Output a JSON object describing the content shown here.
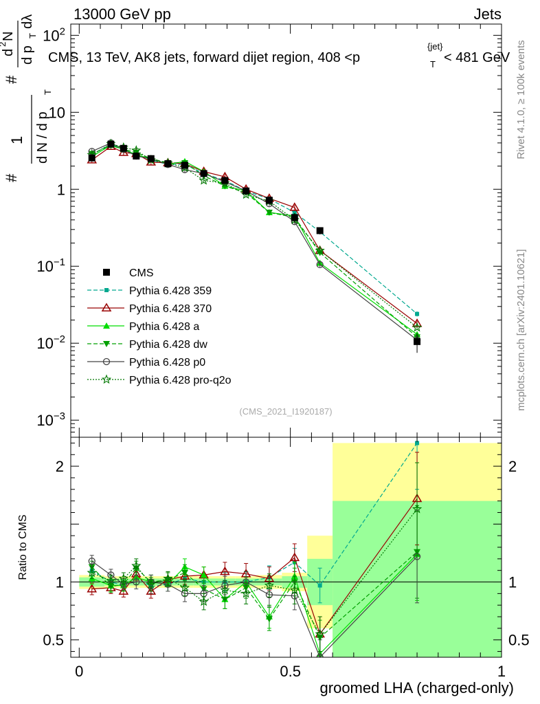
{
  "header": {
    "left": "13000 GeV pp",
    "right": "Jets"
  },
  "side_labels": {
    "rivet": "Rivet 4.1.0, ≥ 100k events",
    "mcplots": "mcplots.cern.ch [arXiv:2401.10621]"
  },
  "chart_data": [
    {
      "type": "line",
      "panel": "main",
      "title": "CMS, 13 TeV, AK8 jets, forward dijet region, 408 <p_T^{jet}< 481 GeV",
      "title_parts": {
        "pre": "CMS, 13 TeV, AK8 jets, forward dijet region, 408 <p",
        "sup": "{jet}",
        "sub": "T",
        "post": "< 481 GeV"
      },
      "ylabel": "1/dN/dp_T d²N/dp_T dλ",
      "ylabel_parts": {
        "hash": "#",
        "one": "1",
        "den": "d N / d p",
        "sub": "T",
        "num": "d",
        "sup": "2",
        "num2": "N",
        "den2": "d p",
        "sub2": "T",
        "lam": " dλ"
      },
      "yscale": "log",
      "ylim": [
        0.0006,
        140
      ],
      "yticks": [
        {
          "value": 0.001,
          "base": "10",
          "exp": "−3"
        },
        {
          "value": 0.01,
          "base": "10",
          "exp": "−2"
        },
        {
          "value": 0.1,
          "base": "10",
          "exp": "−1"
        },
        {
          "value": 1,
          "label": "1"
        },
        {
          "value": 10,
          "label": "10"
        },
        {
          "value": 100,
          "base": "10",
          "exp": "2"
        }
      ],
      "xlim": [
        -0.02,
        1.0
      ],
      "watermark": "(CMS_2021_I1920187)",
      "legend_position": "center-left",
      "x": [
        0.03,
        0.075,
        0.105,
        0.135,
        0.17,
        0.21,
        0.25,
        0.295,
        0.345,
        0.395,
        0.45,
        0.51,
        0.57,
        0.8
      ],
      "series": [
        {
          "name": "CMS",
          "color": "#000000",
          "marker": "square",
          "dash": "none",
          "values": [
            2.55,
            3.85,
            3.4,
            2.7,
            2.5,
            2.15,
            2.05,
            1.6,
            1.3,
            0.95,
            0.72,
            0.43,
            0.29,
            0.0105
          ],
          "errors": [
            0.25,
            0.3,
            0.25,
            0.2,
            0.2,
            0.18,
            0.18,
            0.15,
            0.12,
            0.1,
            0.08,
            0.06,
            0.03,
            0.003
          ]
        },
        {
          "name": "Pythia 6.428 359",
          "color": "#00a88f",
          "marker": "square-small",
          "dash": "6,3",
          "values": [
            2.8,
            3.85,
            3.3,
            2.8,
            2.4,
            2.1,
            2.1,
            1.6,
            1.3,
            0.95,
            0.75,
            0.5,
            0.28,
            0.024
          ]
        },
        {
          "name": "Pythia 6.428 370",
          "color": "#990000",
          "marker": "triangle-open",
          "dash": "none",
          "values": [
            2.4,
            3.6,
            3.0,
            2.9,
            2.25,
            2.2,
            2.15,
            1.7,
            1.45,
            1.0,
            0.76,
            0.58,
            0.16,
            0.018
          ]
        },
        {
          "name": "Pythia 6.428 a",
          "color": "#00dd00",
          "marker": "triangle",
          "dash": "none",
          "values": [
            2.65,
            3.75,
            3.3,
            2.8,
            2.5,
            2.1,
            2.3,
            1.7,
            1.1,
            0.95,
            0.5,
            0.45,
            0.11,
            0.013
          ]
        },
        {
          "name": "Pythia 6.428 dw",
          "color": "#00a000",
          "marker": "triangle-down",
          "dash": "6,3",
          "values": [
            2.9,
            3.7,
            3.3,
            3.0,
            2.5,
            2.2,
            2.2,
            1.5,
            1.1,
            0.9,
            0.5,
            0.43,
            0.15,
            0.012
          ]
        },
        {
          "name": "Pythia 6.428 p0",
          "color": "#444444",
          "marker": "circle-open",
          "dash": "none",
          "values": [
            3.1,
            4.0,
            3.3,
            2.7,
            2.5,
            2.1,
            1.8,
            1.6,
            1.25,
            0.95,
            0.65,
            0.38,
            0.105,
            0.011
          ]
        },
        {
          "name": "Pythia 6.428 pro-q2o",
          "color": "#007700",
          "marker": "star",
          "dash": "2,2",
          "values": [
            2.8,
            3.9,
            3.5,
            3.2,
            2.4,
            2.2,
            1.9,
            1.3,
            1.2,
            0.85,
            0.7,
            0.4,
            0.16,
            0.016
          ]
        }
      ]
    },
    {
      "type": "line",
      "panel": "ratio",
      "ylabel": "Ratio to CMS",
      "ylim": [
        0.35,
        2.25
      ],
      "yticks": [
        0.5,
        1,
        2
      ],
      "xlim": [
        -0.02,
        1.0
      ],
      "xticks": [
        0,
        0.5,
        1
      ],
      "xtick_labels": [
        "0",
        "0.5",
        "1"
      ],
      "xlabel": "groomed LHA (charged-only)",
      "bins": [
        0.0,
        0.06,
        0.09,
        0.12,
        0.15,
        0.19,
        0.23,
        0.27,
        0.32,
        0.37,
        0.42,
        0.48,
        0.54,
        0.6,
        1.0
      ],
      "band_inner": [
        0.04,
        0.03,
        0.03,
        0.03,
        0.03,
        0.03,
        0.03,
        0.03,
        0.03,
        0.03,
        0.03,
        0.05,
        0.2,
        0.7
      ],
      "band_outer": [
        0.06,
        0.05,
        0.05,
        0.05,
        0.05,
        0.05,
        0.05,
        0.05,
        0.05,
        0.05,
        0.06,
        0.08,
        0.4,
        1.2
      ],
      "band_inner_color": "#99ff99",
      "band_outer_color": "#ffff99",
      "x": [
        0.03,
        0.075,
        0.105,
        0.135,
        0.17,
        0.21,
        0.25,
        0.295,
        0.345,
        0.395,
        0.45,
        0.51,
        0.57,
        0.8
      ],
      "series": [
        {
          "name": "Pythia 6.428 359",
          "color": "#00a88f",
          "marker": "square-small",
          "dash": "6,3",
          "values": [
            1.1,
            1.0,
            0.97,
            1.04,
            0.96,
            0.98,
            1.03,
            1.0,
            1.0,
            1.0,
            1.04,
            1.17,
            0.97,
            2.2
          ]
        },
        {
          "name": "Pythia 6.428 370",
          "color": "#990000",
          "marker": "triangle-open",
          "dash": "none",
          "values": [
            0.94,
            0.95,
            0.92,
            1.07,
            0.92,
            1.02,
            1.05,
            1.06,
            1.09,
            1.07,
            1.03,
            1.21,
            0.55,
            1.72
          ]
        },
        {
          "name": "Pythia 6.428 a",
          "color": "#00dd00",
          "marker": "triangle",
          "dash": "none",
          "values": [
            1.03,
            0.97,
            0.97,
            1.04,
            1.0,
            0.98,
            1.13,
            1.06,
            0.85,
            1.0,
            0.7,
            1.05,
            0.38,
            1.24
          ]
        },
        {
          "name": "Pythia 6.428 dw",
          "color": "#00a000",
          "marker": "triangle-down",
          "dash": "6,3",
          "values": [
            1.13,
            0.96,
            0.98,
            1.12,
            1.0,
            1.02,
            1.08,
            0.94,
            0.85,
            0.95,
            0.68,
            1.0,
            0.52,
            1.26
          ]
        },
        {
          "name": "Pythia 6.428 p0",
          "color": "#444444",
          "marker": "circle-open",
          "dash": "none",
          "values": [
            1.18,
            1.06,
            0.98,
            1.0,
            1.0,
            0.98,
            0.9,
            0.9,
            0.97,
            1.0,
            0.89,
            0.88,
            0.35,
            1.22
          ]
        },
        {
          "name": "Pythia 6.428 pro-q2o",
          "color": "#007700",
          "marker": "star",
          "dash": "2,2",
          "values": [
            1.08,
            1.01,
            1.03,
            1.14,
            0.98,
            1.03,
            0.95,
            0.83,
            0.93,
            0.9,
            0.97,
            0.93,
            0.55,
            1.63
          ]
        }
      ],
      "errors": [
        0.05,
        0.05,
        0.05,
        0.06,
        0.06,
        0.06,
        0.07,
        0.07,
        0.08,
        0.09,
        0.1,
        0.12,
        0.15,
        0.4
      ]
    }
  ]
}
